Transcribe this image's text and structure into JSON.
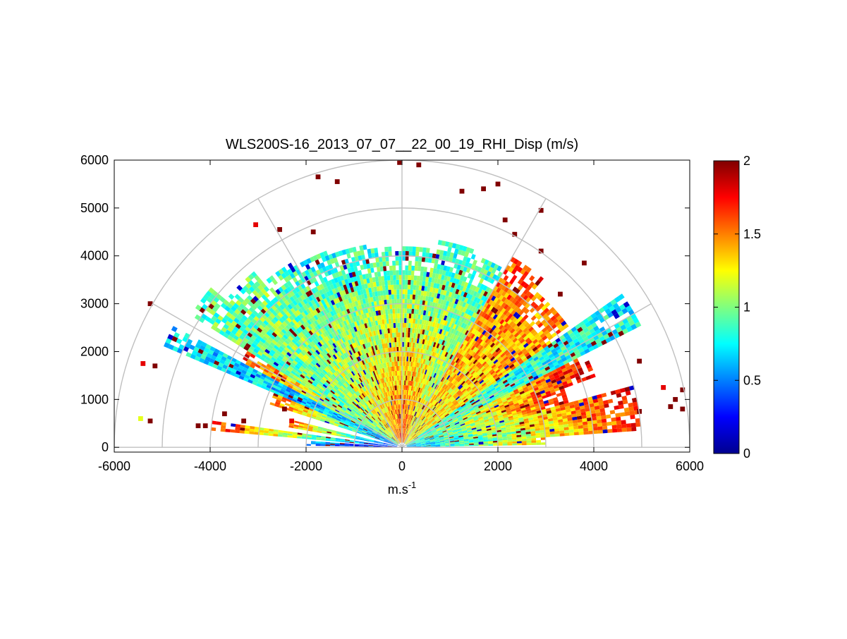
{
  "chart_data": {
    "type": "heatmap",
    "subtype": "polar-rhi-scan",
    "title": "WLS200S-16_2013_07_07__22_00_19_RHI_Disp (m/s)",
    "xlabel": "m.s",
    "xlabel_superscript": "-1",
    "ylabel": "",
    "xlim": [
      -6000,
      6000
    ],
    "ylim": [
      -100,
      6000
    ],
    "xticks": [
      -6000,
      -4000,
      -2000,
      0,
      2000,
      4000,
      6000
    ],
    "yticks": [
      0,
      1000,
      2000,
      3000,
      4000,
      5000,
      6000
    ],
    "xtick_labels": [
      "-6000",
      "-4000",
      "-2000",
      "0",
      "2000",
      "4000",
      "6000"
    ],
    "ytick_labels": [
      "0",
      "1000",
      "2000",
      "3000",
      "4000",
      "5000",
      "6000"
    ],
    "polar_rings": [
      1000,
      2000,
      3000,
      4000,
      5000,
      6000
    ],
    "polar_spokes_deg": [
      0,
      30,
      60,
      90,
      120,
      150,
      180
    ],
    "colorbar": {
      "colormap": "jet",
      "range": [
        0,
        2
      ],
      "ticks": [
        0,
        0.5,
        1,
        1.5,
        2
      ],
      "tick_labels": [
        "0",
        "0.5",
        "1",
        "1.5",
        "2"
      ]
    },
    "range_gate_m": 100,
    "sectors": [
      {
        "az_from": 1,
        "az_to": 4,
        "r_from": 100,
        "r_to": 3000,
        "v_near": 0.55,
        "v_far": 1.4
      },
      {
        "az_from": 4,
        "az_to": 10,
        "r_from": 100,
        "r_to": 5000,
        "v_near": 0.6,
        "v_far": 1.7
      },
      {
        "az_from": 10,
        "az_to": 15,
        "r_from": 100,
        "r_to": 5000,
        "v_near": 0.7,
        "v_far": 1.8
      },
      {
        "az_from": 15,
        "az_to": 20,
        "r_from": 100,
        "r_to": 3600,
        "v_near": 0.7,
        "v_far": 1.7
      },
      {
        "az_from": 20,
        "az_to": 27,
        "r_from": 100,
        "r_to": 4300,
        "v_near": 0.8,
        "v_far": 1.8
      },
      {
        "az_from": 27,
        "az_to": 35,
        "r_from": 100,
        "r_to": 5600,
        "v_near": 0.9,
        "v_far": 0.75
      },
      {
        "az_from": 35,
        "az_to": 50,
        "r_from": 100,
        "r_to": 4300,
        "v_near": 1.2,
        "v_far": 1.5
      },
      {
        "az_from": 50,
        "az_to": 60,
        "r_from": 100,
        "r_to": 4600,
        "v_near": 1.2,
        "v_far": 1.6
      },
      {
        "az_from": 60,
        "az_to": 70,
        "r_from": 100,
        "r_to": 4300,
        "v_near": 1.3,
        "v_far": 0.85
      },
      {
        "az_from": 70,
        "az_to": 80,
        "r_from": 100,
        "r_to": 4400,
        "v_near": 1.5,
        "v_far": 0.8
      },
      {
        "az_from": 80,
        "az_to": 100,
        "r_from": 100,
        "r_to": 4200,
        "v_near": 1.6,
        "v_far": 0.85
      },
      {
        "az_from": 100,
        "az_to": 110,
        "r_from": 100,
        "r_to": 4300,
        "v_near": 1.5,
        "v_far": 0.8
      },
      {
        "az_from": 110,
        "az_to": 120,
        "r_from": 100,
        "r_to": 4400,
        "v_near": 1.4,
        "v_far": 0.8
      },
      {
        "az_from": 120,
        "az_to": 130,
        "r_from": 100,
        "r_to": 4500,
        "v_near": 1.3,
        "v_far": 0.85
      },
      {
        "az_from": 130,
        "az_to": 140,
        "r_from": 100,
        "r_to": 4800,
        "v_near": 1.1,
        "v_far": 0.95
      },
      {
        "az_from": 140,
        "az_to": 148,
        "r_from": 100,
        "r_to": 5200,
        "v_near": 1.0,
        "v_far": 0.9
      },
      {
        "az_from": 148,
        "az_to": 152,
        "r_from": 100,
        "r_to": 3800,
        "v_near": 0.6,
        "v_far": 1.7
      },
      {
        "az_from": 152,
        "az_to": 157,
        "r_from": 100,
        "r_to": 5400,
        "v_near": 0.6,
        "v_far": 0.7
      },
      {
        "az_from": 157,
        "az_to": 162,
        "r_from": 100,
        "r_to": 2900,
        "v_near": 0.5,
        "v_far": 1.6
      },
      {
        "az_from": 166,
        "az_to": 170,
        "r_from": 100,
        "r_to": 2400,
        "v_near": 0.4,
        "v_far": 1.5
      },
      {
        "az_from": 172,
        "az_to": 175,
        "r_from": 100,
        "r_to": 4000,
        "v_near": 0.3,
        "v_far": 1.7
      },
      {
        "az_from": 176,
        "az_to": 179,
        "r_from": 100,
        "r_to": 2000,
        "v_near": 0.15,
        "v_far": 0.6
      }
    ],
    "scattered_cells": [
      {
        "x": -50,
        "y": 5950,
        "v": 2
      },
      {
        "x": 350,
        "y": 5900,
        "v": 2
      },
      {
        "x": -1750,
        "y": 5650,
        "v": 2
      },
      {
        "x": -1350,
        "y": 5550,
        "v": 2
      },
      {
        "x": 2000,
        "y": 5500,
        "v": 2
      },
      {
        "x": 1700,
        "y": 5400,
        "v": 2
      },
      {
        "x": 1250,
        "y": 5350,
        "v": 2
      },
      {
        "x": 2900,
        "y": 4950,
        "v": 2
      },
      {
        "x": 2150,
        "y": 4750,
        "v": 2
      },
      {
        "x": -3050,
        "y": 4650,
        "v": 1.8
      },
      {
        "x": -2550,
        "y": 4550,
        "v": 2
      },
      {
        "x": 2350,
        "y": 4450,
        "v": 2
      },
      {
        "x": -1850,
        "y": 4500,
        "v": 2
      },
      {
        "x": 2900,
        "y": 4100,
        "v": 2
      },
      {
        "x": 3800,
        "y": 3850,
        "v": 2
      },
      {
        "x": 3300,
        "y": 3200,
        "v": 2
      },
      {
        "x": -5250,
        "y": 3000,
        "v": 2
      },
      {
        "x": -5400,
        "y": 1750,
        "v": 1.8
      },
      {
        "x": -5150,
        "y": 1700,
        "v": 2
      },
      {
        "x": 4950,
        "y": 1800,
        "v": 2
      },
      {
        "x": 5450,
        "y": 1250,
        "v": 1.8
      },
      {
        "x": 5700,
        "y": 1000,
        "v": 2
      },
      {
        "x": 5850,
        "y": 1200,
        "v": 2
      },
      {
        "x": 5600,
        "y": 850,
        "v": 2
      },
      {
        "x": 5850,
        "y": 800,
        "v": 2
      },
      {
        "x": 4950,
        "y": 750,
        "v": 2
      },
      {
        "x": -5450,
        "y": 600,
        "v": 1.2
      },
      {
        "x": -5250,
        "y": 550,
        "v": 2
      },
      {
        "x": -4250,
        "y": 450,
        "v": 2
      },
      {
        "x": -4100,
        "y": 450,
        "v": 2
      },
      {
        "x": -3700,
        "y": 700,
        "v": 2
      },
      {
        "x": -3300,
        "y": 550,
        "v": 2
      },
      {
        "x": -2300,
        "y": 550,
        "v": 1.8
      },
      {
        "x": -2450,
        "y": 800,
        "v": 2
      }
    ]
  }
}
